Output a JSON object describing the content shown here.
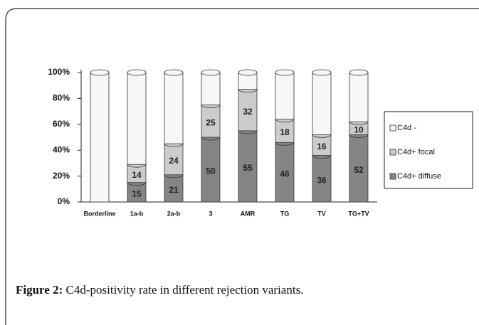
{
  "chart_data": {
    "type": "stacked_bar",
    "categories": [
      "Borderline",
      "1a-b",
      "2a-b",
      "3",
      "AMR",
      "TG",
      "TV",
      "TG+TV"
    ],
    "series": [
      {
        "name": "C4d+ diffuse",
        "color": "#858585",
        "values": [
          0,
          15,
          21,
          50,
          55,
          46,
          36,
          52
        ],
        "show_labels": true
      },
      {
        "name": "C4d+ focal",
        "color": "#cccccc",
        "values": [
          0,
          14,
          24,
          25,
          32,
          18,
          16,
          10
        ],
        "show_labels": true
      },
      {
        "name": "C4d -",
        "color": "#f7f7f7",
        "values": [
          100,
          71,
          55,
          25,
          13,
          36,
          48,
          38
        ],
        "show_labels": false
      }
    ],
    "ylim": [
      0,
      100
    ],
    "yticks": [
      {
        "value": 0,
        "label": "0%"
      },
      {
        "value": 20,
        "label": "20%"
      },
      {
        "value": 40,
        "label": "40%"
      },
      {
        "value": 60,
        "label": "60%"
      },
      {
        "value": 80,
        "label": "80%"
      },
      {
        "value": 100,
        "label": "100%"
      }
    ],
    "grid": false,
    "legend": "right"
  },
  "caption": {
    "label": "Figure 2:",
    "text": "C4d-positivity rate in different rejection variants."
  }
}
